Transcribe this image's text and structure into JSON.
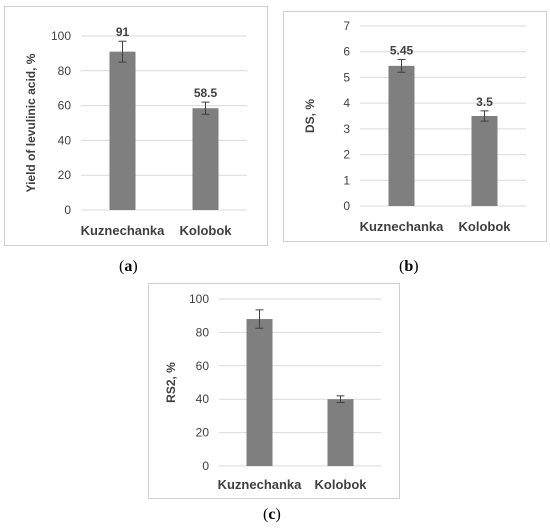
{
  "chart_data": [
    {
      "type": "bar",
      "categories": [
        "Kuznechanka",
        "Kolobok"
      ],
      "values": [
        91,
        58.5
      ],
      "error": [
        6,
        3.5
      ],
      "data_labels": [
        "91",
        "58.5"
      ],
      "xlabel": "",
      "ylabel": "Yield of levulinic acid, %",
      "ylim": [
        0,
        100
      ],
      "yticks": [
        0,
        20,
        40,
        60,
        80,
        100
      ],
      "grid": true,
      "bar_color": "#7f7f7f",
      "caption": {
        "open": "(",
        "letter": "a",
        "close": ")"
      }
    },
    {
      "type": "bar",
      "categories": [
        "Kuznechanka",
        "Kolobok"
      ],
      "values": [
        5.45,
        3.5
      ],
      "error": [
        0.25,
        0.2
      ],
      "data_labels": [
        "5.45",
        "3.5"
      ],
      "xlabel": "",
      "ylabel": "DS, %",
      "ylim": [
        0,
        7
      ],
      "yticks": [
        0,
        1,
        2,
        3,
        4,
        5,
        6,
        7
      ],
      "grid": true,
      "bar_color": "#7f7f7f",
      "caption": {
        "open": "(",
        "letter": "b",
        "close": ")"
      }
    },
    {
      "type": "bar",
      "categories": [
        "Kuznechanka",
        "Kolobok"
      ],
      "values": [
        88,
        40
      ],
      "error": [
        5.5,
        2
      ],
      "data_labels": [],
      "xlabel": "",
      "ylabel": "RS2, %",
      "ylim": [
        0,
        100
      ],
      "yticks": [
        0,
        20,
        40,
        60,
        80,
        100
      ],
      "grid": true,
      "bar_color": "#7f7f7f",
      "caption": {
        "open": "(",
        "letter": "c",
        "close": ")"
      }
    }
  ]
}
